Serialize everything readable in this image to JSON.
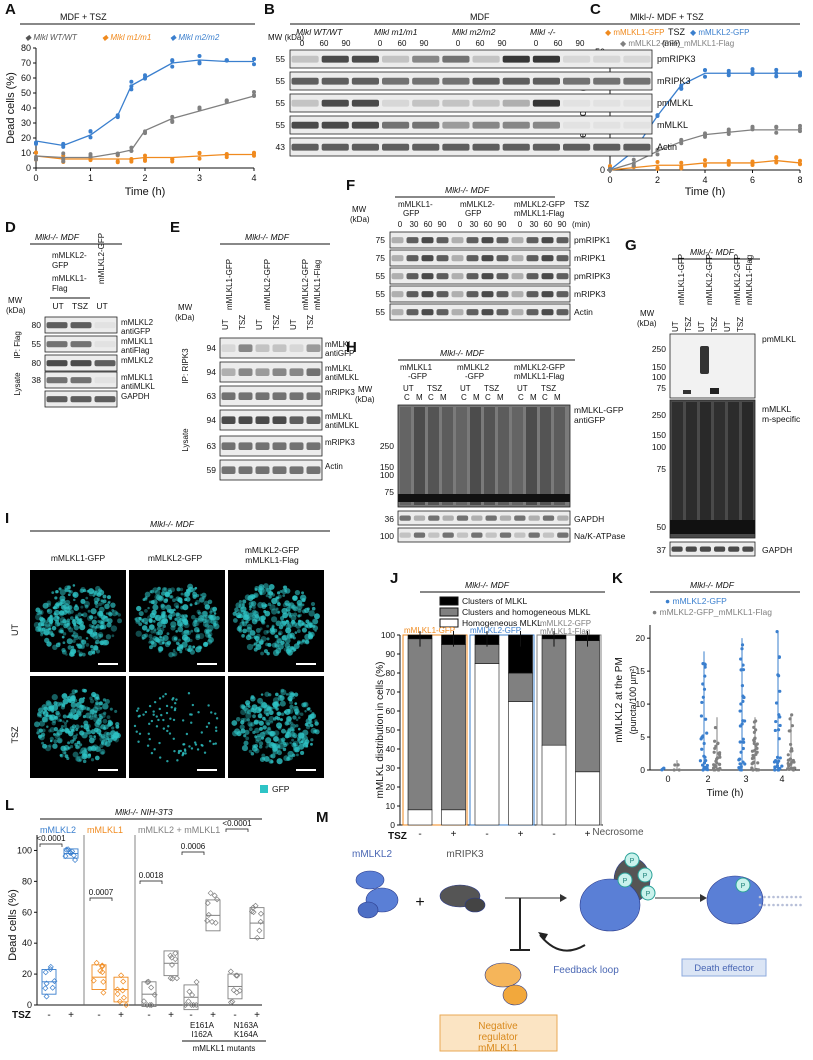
{
  "panels": [
    "A",
    "B",
    "C",
    "D",
    "E",
    "F",
    "G",
    "H",
    "I",
    "J",
    "K",
    "L",
    "M"
  ],
  "panelA": {
    "header": "MDF + TSZ",
    "legend": [
      "Mlkl WT/WT",
      "Mlkl m1/m1",
      "Mlkl m2/m2"
    ],
    "xlabel": "Time (h)",
    "ylabel": "Dead cells (%)"
  },
  "panelB": {
    "header": "MDF",
    "genotypes": [
      "Mlkl WT/WT",
      "Mlkl m1/m1",
      "Mlkl m2/m2",
      "Mlkl -/-"
    ],
    "tsz": "TSZ",
    "min": "(min)",
    "times": [
      "0",
      "60",
      "90"
    ],
    "mw": "MW (kDa)",
    "markers": [
      "55",
      "55",
      "55",
      "55",
      "43"
    ],
    "rows": [
      "pmRIPK3",
      "mRIPK3",
      "pmMLKL",
      "mMLKL",
      "Actin"
    ]
  },
  "panelC": {
    "header": "Mlkl-/- MDF + TSZ",
    "legend": [
      "mMLKL1-GFP",
      "mMLKL2-GFP",
      "mMLKL2-GFP_mMLKL1-Flag"
    ],
    "xlabel": "Time (h)",
    "ylabel": "Dead cells (%)"
  },
  "panelD": {
    "header": "Mlkl-/- MDF",
    "cols": [
      "mMLKL2-GFP mMLKL1-Flag",
      "mMLKL2-GFP"
    ],
    "treat": [
      "UT",
      "TSZ",
      "UT"
    ],
    "markers": [
      "80",
      "55",
      "80",
      "38"
    ],
    "rows": [
      "mMLKL2 antiGFP",
      "mMLKL1 antiFlag",
      "mMLKL2",
      "mMLKL1 antiMLKL",
      "GAPDH"
    ],
    "groups": [
      "IP: Flag",
      "Lysate"
    ],
    "mw": "MW (kDa)"
  },
  "panelE": {
    "header": "Mlkl-/- MDF",
    "cols": [
      "mMLKL1-GFP",
      "mMLKL2-GFP",
      "mMLKL2-GFP mMLKL1-Flag"
    ],
    "treat": [
      "UT",
      "TSZ",
      "UT",
      "TSZ",
      "UT",
      "TSZ"
    ],
    "markers": [
      "94",
      "94",
      "63",
      "94",
      "63",
      "59"
    ],
    "rows": [
      "mMLKL antiGFP",
      "mMLKL antiMLKL",
      "mRIPK3",
      "mMLKL antiMLKL",
      "mRIPK3",
      "Actin"
    ],
    "groups": [
      "IP: RIPK3",
      "Lysate"
    ],
    "mw": "MW (kDa)"
  },
  "panelF": {
    "header": "Mlkl-/- MDF",
    "cols": [
      "mMLKL1-GFP",
      "mMLKL2-GFP",
      "mMLKL2-GFP mMLKL1-Flag"
    ],
    "times": [
      "0",
      "30",
      "60",
      "90"
    ],
    "tsz": "TSZ",
    "min": "(min)",
    "markers": [
      "75",
      "75",
      "55",
      "55",
      "55"
    ],
    "rows": [
      "pmRIPK1",
      "mRIPK1",
      "pmRIPK3",
      "mRIPK3",
      "Actin"
    ],
    "mw": "MW (kDa)"
  },
  "panelG": {
    "header": "Mlkl-/- MDF",
    "cols": [
      "mMLKL1-GFP",
      "mMLKL2-GFP",
      "mMLKL2-GFP mMLKL1-Flag"
    ],
    "treat": [
      "UT",
      "TSZ",
      "UT",
      "TSZ",
      "UT",
      "TSZ"
    ],
    "markers1": [
      "250",
      "150",
      "100",
      "75"
    ],
    "markers2": [
      "250",
      "150",
      "100",
      "75",
      "50",
      "37"
    ],
    "rows": [
      "pmMLKL",
      "mMLKL m-specific",
      "GAPDH"
    ],
    "mw": "MW (kDa)"
  },
  "panelH": {
    "header": "Mlkl-/- MDF",
    "cols": [
      "mMLKL1 -GFP",
      "mMLKL2 -GFP",
      "mMLKL2-GFP mMLKL1-Flag"
    ],
    "treat": [
      "UT",
      "TSZ"
    ],
    "frac": [
      "C",
      "M"
    ],
    "markers": [
      "250",
      "150",
      "100",
      "75",
      "36",
      "100"
    ],
    "rows": [
      "mMLKL-GFP antiGFP",
      "GAPDH",
      "Na/K-ATPase"
    ],
    "mw": "MW (kDa)"
  },
  "panelI": {
    "header": "Mlkl-/- MDF",
    "cols": [
      "mMLKL1-GFP",
      "mMLKL2-GFP",
      "mMLKL2-GFP mMLKL1-Flag"
    ],
    "rows": [
      "UT",
      "TSZ"
    ],
    "legend": "GFP"
  },
  "panelJ": {
    "header": "Mlkl-/- MDF",
    "legend": [
      "Clusters of MLKL",
      "Clusters and homogeneous MLKL",
      "Homogeneous MLKL"
    ],
    "groups": [
      "mMLKL1-GFP",
      "mMLKL2-GFP",
      "mMLKL2-GFP mMLKL1-Flag"
    ],
    "ylabel": "mMLKL distribution in cells (%)",
    "tsz": "TSZ",
    "signs": [
      "-",
      "+",
      "-",
      "+",
      "-",
      "+"
    ],
    "yticks": [
      "0",
      "10",
      "20",
      "30",
      "40",
      "50",
      "60",
      "70",
      "80",
      "90",
      "100"
    ]
  },
  "panelK": {
    "header": "Mlkl-/- MDF",
    "legend": [
      "mMLKL2-GFP",
      "mMLKL2-GFP_mMLKL1-Flag"
    ],
    "ylabel": "mMLKL2 at the PM (puncta/100 µm²)",
    "xlabel": "Time (h)",
    "xticks": [
      "0",
      "2",
      "3",
      "4"
    ],
    "yticks": [
      "0",
      "5",
      "10",
      "15",
      "20"
    ]
  },
  "panelL": {
    "header": "Mlkl-/- NIH-3T3",
    "groups": [
      "mMLKL2",
      "mMLKL1",
      "mMLKL2 + mMLKL1"
    ],
    "pvals": [
      "<0.0001",
      "0.0007",
      "0.0018",
      "0.0006",
      "<0.0001"
    ],
    "ylabel": "Dead cells (%)",
    "tsz": "TSZ",
    "signs": [
      "-",
      "+",
      "-",
      "+",
      "-",
      "+",
      "-",
      "+",
      "-",
      "+"
    ],
    "mutants": [
      "E161A I162A",
      "N163A K164A"
    ],
    "mutlabel": "mMLKL1 mutants",
    "yticks": [
      "0",
      "20",
      "40",
      "60",
      "80",
      "100"
    ]
  },
  "panelM": {
    "labels": [
      "mMLKL2",
      "mRIPK3",
      "+",
      "Necrosome",
      "Feedback loop",
      "Death effector",
      "Negative regulator mMLKL1"
    ],
    "p": "P"
  },
  "chart_data": [
    {
      "type": "scatter",
      "panel": "A",
      "x": [
        0,
        0.5,
        1,
        1.5,
        1.75,
        2,
        2.5,
        3,
        3.5,
        4
      ],
      "series": [
        {
          "name": "Mlkl WT/WT",
          "values": [
            8,
            6,
            6,
            6,
            6,
            7,
            7,
            8,
            9,
            9
          ]
        },
        {
          "name": "Mlkl m1/m1",
          "values": [
            8,
            7,
            7,
            10,
            12,
            25,
            33,
            38,
            43,
            48
          ]
        },
        {
          "name": "Mlkl m2/m2",
          "values": [
            18,
            15,
            22,
            35,
            55,
            60,
            70,
            72,
            71,
            71
          ]
        }
      ],
      "xlim": [
        0,
        4
      ],
      "ylim": [
        0,
        80
      ],
      "yticks": [
        0,
        10,
        20,
        30,
        40,
        50,
        60,
        70,
        80
      ],
      "xticks": [
        0,
        1,
        2,
        3,
        4
      ]
    },
    {
      "type": "scatter",
      "panel": "C",
      "x": [
        0,
        1,
        2,
        3,
        4,
        5,
        6,
        7,
        8
      ],
      "series": [
        {
          "name": "mMLKL1-GFP",
          "values": [
            0,
            1,
            2,
            2,
            3,
            3,
            3,
            4,
            3
          ]
        },
        {
          "name": "mMLKL2-GFP",
          "values": [
            0,
            8,
            23,
            36,
            41,
            41,
            41,
            41,
            41
          ]
        },
        {
          "name": "mMLKL2-GFP_mMLKL1-Flag",
          "values": [
            0,
            3,
            8,
            12,
            15,
            16,
            17,
            17,
            17
          ]
        }
      ],
      "xlim": [
        0,
        8
      ],
      "ylim": [
        0,
        50
      ],
      "yticks": [
        0,
        10,
        20,
        30,
        40,
        50
      ],
      "xticks": [
        0,
        2,
        4,
        6,
        8
      ]
    },
    {
      "type": "bar",
      "panel": "J",
      "categories": [
        "GFP1 -",
        "GFP1 +",
        "GFP2 -",
        "GFP2 +",
        "Co -",
        "Co +"
      ],
      "series": [
        {
          "name": "Homogeneous MLKL",
          "values": [
            8,
            8,
            85,
            65,
            42,
            28
          ]
        },
        {
          "name": "Clusters and homogeneous MLKL",
          "values": [
            90,
            87,
            10,
            15,
            56,
            69
          ]
        },
        {
          "name": "Clusters of MLKL",
          "values": [
            2,
            5,
            5,
            20,
            2,
            3
          ]
        }
      ],
      "ylim": [
        0,
        100
      ]
    },
    {
      "type": "scatter",
      "panel": "K",
      "x": [
        0,
        2,
        3,
        4
      ],
      "series": [
        {
          "name": "mMLKL2-GFP",
          "values": [
            0.3,
            18,
            20,
            21
          ]
        },
        {
          "name": "mMLKL2-GFP_mMLKL1-Flag",
          "values": [
            1.5,
            8,
            8,
            8.5
          ]
        }
      ],
      "ylim": [
        0,
        22
      ]
    },
    {
      "type": "bar",
      "panel": "L",
      "categories": [
        "mMLKL2 -",
        "mMLKL2 +",
        "mMLKL1 -",
        "mMLKL1 +",
        "Co -",
        "Co +",
        "E161A -",
        "E161A +",
        "N163A -",
        "N163A +"
      ],
      "values": [
        15,
        98,
        18,
        10,
        7,
        27,
        5,
        58,
        12,
        53
      ],
      "ylim": [
        0,
        100
      ]
    }
  ]
}
